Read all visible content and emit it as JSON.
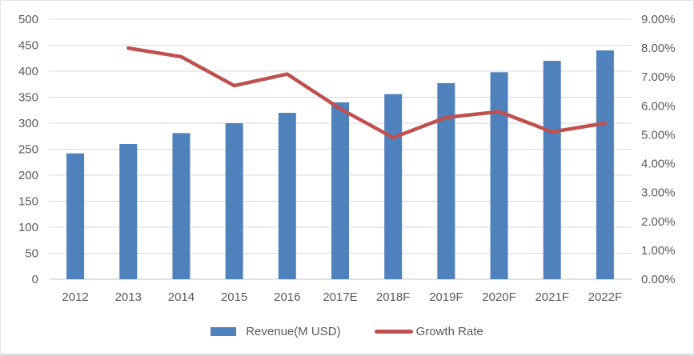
{
  "chart_data": {
    "type": "combo-bar-line",
    "title": "",
    "categories": [
      "2012",
      "2013",
      "2014",
      "2015",
      "2016",
      "2017E",
      "2018F",
      "2019F",
      "2020F",
      "2021F",
      "2022F"
    ],
    "series": [
      {
        "name": "Revenue(M USD)",
        "chart_type": "bar",
        "axis": "left",
        "color": "#4F81BD",
        "values": [
          242,
          260,
          281,
          300,
          320,
          340,
          356,
          377,
          398,
          420,
          440
        ]
      },
      {
        "name": "Growth Rate",
        "chart_type": "line",
        "axis": "right",
        "color": "#C0504D",
        "unit": "%",
        "values": [
          null,
          8.0,
          7.7,
          6.7,
          7.1,
          5.9,
          4.9,
          5.6,
          5.8,
          5.1,
          5.4
        ]
      }
    ],
    "left_axis": {
      "min": 0,
      "max": 500,
      "step": 50,
      "tick_labels": [
        "500",
        "450",
        "400",
        "350",
        "300",
        "250",
        "200",
        "150",
        "100",
        "50",
        "0"
      ]
    },
    "right_axis": {
      "min": 0,
      "max": 9,
      "step": 1,
      "tick_labels": [
        "9.00%",
        "8.00%",
        "7.00%",
        "6.00%",
        "5.00%",
        "4.00%",
        "3.00%",
        "2.00%",
        "1.00%",
        "0.00%"
      ]
    },
    "grid": true,
    "legend_position": "bottom",
    "colors": {
      "gridline": "#D9D9D9",
      "axis_line": "#C6C6C6",
      "axis_text": "#595959",
      "background": "#FFFFFF"
    }
  }
}
